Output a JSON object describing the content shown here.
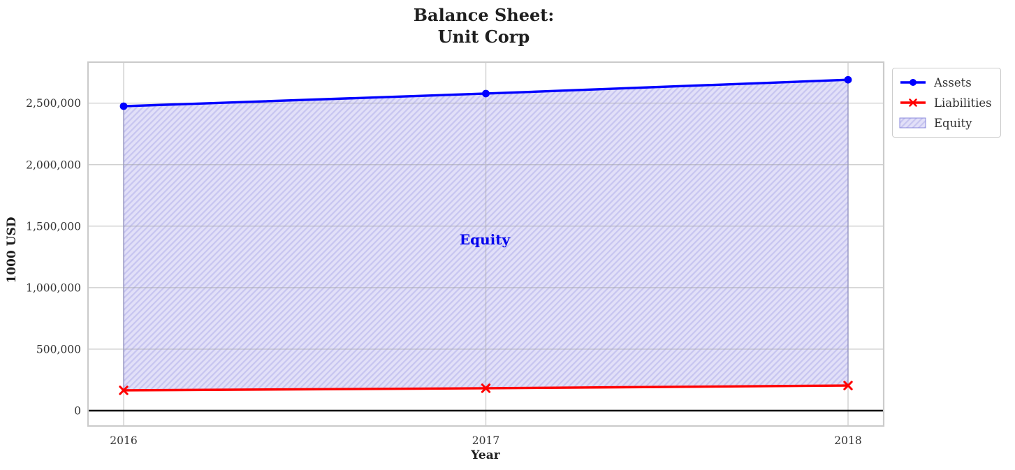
{
  "chart_data": {
    "type": "line",
    "title": "Balance Sheet:\nUnit Corp",
    "xlabel": "Year",
    "ylabel": "1000 USD",
    "x_values": [
      2016,
      2017,
      2018
    ],
    "x_tick_labels": [
      "2016",
      "2017",
      "2018"
    ],
    "yticks": {
      "values": [
        0,
        500000,
        1000000,
        1500000,
        2000000,
        2500000
      ],
      "labels": [
        "0",
        "500,000",
        "1,000,000",
        "1,500,000",
        "2,000,000",
        "2,500,000"
      ]
    },
    "ylim": [
      -125000,
      2835000
    ],
    "grid": true,
    "zero_line": true,
    "zero_line_color": "#000000",
    "series": [
      {
        "name": "Assets",
        "marker": "circle",
        "color": "#0000ff",
        "values": [
          2475000,
          2578000,
          2690000
        ]
      },
      {
        "name": "Liabilities",
        "marker": "x",
        "color": "#ff0000",
        "values": [
          165000,
          182000,
          204000
        ]
      }
    ],
    "fill_between": {
      "label": "Equity",
      "between": [
        "Assets",
        "Liabilities"
      ],
      "facecolor": "#e2e0f8",
      "hatch": "/",
      "hatch_color": "#c7c5f0",
      "edge_color": "#8a88dd",
      "annotation_color": "#0000ee"
    },
    "legend_position": "outside-upper-right",
    "grid_color": "#999999",
    "frame_color": "#cbcbcb",
    "tick_color": "#333333"
  }
}
